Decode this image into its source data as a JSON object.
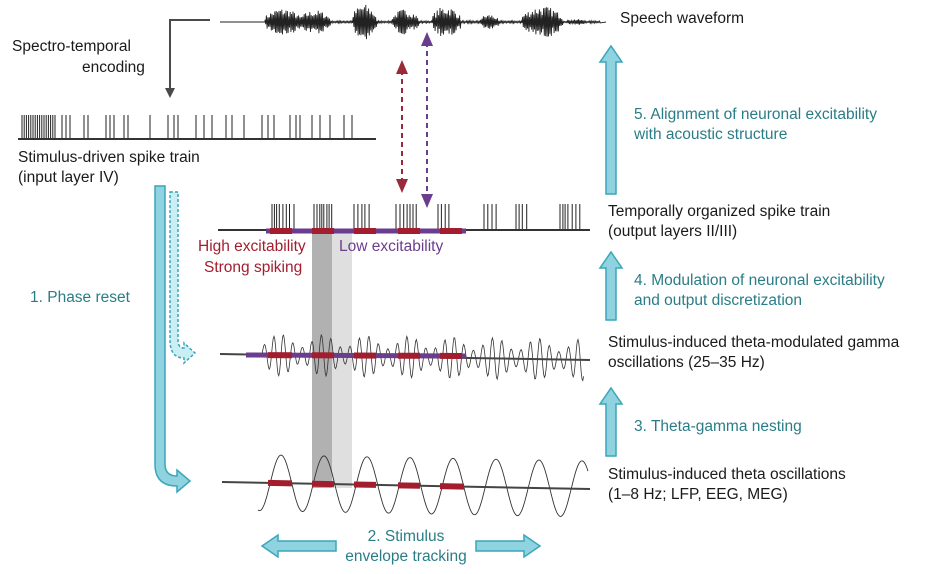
{
  "labels": {
    "speech_waveform": "Speech waveform",
    "spectro_temporal_1": "Spectro-temporal",
    "spectro_temporal_2": "encoding",
    "stim_spike_1": "Stimulus-driven spike train",
    "stim_spike_2": "(input layer IV)",
    "step5_1": "5. Alignment of neuronal excitability",
    "step5_2": "with acoustic structure",
    "temporal_spike_1": "Temporally organized spike train",
    "temporal_spike_2": "(output layers II/III)",
    "high_exc": "High excitability",
    "strong_spiking": "Strong spiking",
    "low_exc": "Low excitability",
    "step4_1": "4. Modulation of neuronal excitability",
    "step4_2": "and output discretization",
    "step1": "1. Phase reset",
    "gamma_1": "Stimulus-induced theta-modulated gamma",
    "gamma_2": "oscillations (25–35 Hz)",
    "step3": "3. Theta-gamma nesting",
    "theta_1": "Stimulus-induced theta oscillations",
    "theta_2": "(1–8 Hz; LFP, EEG, MEG)",
    "step2_1": "2. Stimulus",
    "step2_2": "envelope tracking"
  },
  "colors": {
    "teal_text": "#2a7d86",
    "arrow_fill": "#8fd3e0",
    "arrow_stroke": "#3aa6b9",
    "high_red": "#a21e2e",
    "low_purple": "#6b3d8e",
    "trace": "#222222"
  }
}
